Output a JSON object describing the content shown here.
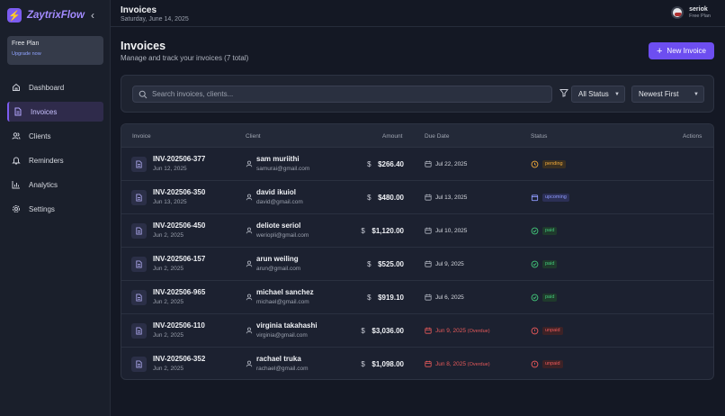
{
  "brand": {
    "name": "ZaytrixFlow",
    "logo_icon": "bolt-icon",
    "accent": "#7c5cf0"
  },
  "plan_card": {
    "title": "Free Plan",
    "link": "Upgrade now"
  },
  "nav": [
    {
      "label": "Dashboard",
      "icon": "home-icon"
    },
    {
      "label": "Invoices",
      "icon": "document-icon",
      "active": true
    },
    {
      "label": "Clients",
      "icon": "users-icon"
    },
    {
      "label": "Reminders",
      "icon": "bell-icon"
    },
    {
      "label": "Analytics",
      "icon": "chart-icon"
    },
    {
      "label": "Settings",
      "icon": "gear-icon"
    }
  ],
  "header": {
    "title": "Invoices",
    "date": "Saturday, June 14, 2025"
  },
  "user": {
    "name": "seriok",
    "plan": "Free Plan"
  },
  "page": {
    "title": "Invoices",
    "subtitle": "Manage and track your invoices (7 total)",
    "new_button": "New Invoice"
  },
  "filters": {
    "search_placeholder": "Search invoices, clients...",
    "status": "All Status",
    "sort": "Newest First"
  },
  "table": {
    "columns": [
      "Invoice",
      "Client",
      "Amount",
      "Due Date",
      "Status",
      "Actions"
    ],
    "rows": [
      {
        "id": "INV-202506-377",
        "date": "Jun 12, 2025",
        "client": "sam muriithi",
        "email": "samurai@gmail.com",
        "currency": "$",
        "amount": "$266.40",
        "due": "Jul 22, 2025",
        "overdue": "",
        "status": "pending"
      },
      {
        "id": "INV-202506-350",
        "date": "Jun 13, 2025",
        "client": "david ikuiol",
        "email": "david@gmail.com",
        "currency": "$",
        "amount": "$480.00",
        "due": "Jul 13, 2025",
        "overdue": "",
        "status": "upcoming"
      },
      {
        "id": "INV-202506-450",
        "date": "Jun 2, 2025",
        "client": "deliote seriol",
        "email": "weriopli@gmail.com",
        "currency": "$",
        "amount": "$1,120.00",
        "due": "Jul 10, 2025",
        "overdue": "",
        "status": "paid"
      },
      {
        "id": "INV-202506-157",
        "date": "Jun 2, 2025",
        "client": "arun weiling",
        "email": "arun@gmail.com",
        "currency": "$",
        "amount": "$525.00",
        "due": "Jul 9, 2025",
        "overdue": "",
        "status": "paid"
      },
      {
        "id": "INV-202506-965",
        "date": "Jun 2, 2025",
        "client": "michael sanchez",
        "email": "michael@gmail.com",
        "currency": "$",
        "amount": "$919.10",
        "due": "Jul 6, 2025",
        "overdue": "",
        "status": "paid"
      },
      {
        "id": "INV-202506-110",
        "date": "Jun 2, 2025",
        "client": "virginia takahashi",
        "email": "virginia@gmail.com",
        "currency": "$",
        "amount": "$3,036.00",
        "due": "Jun 9, 2025",
        "overdue": "(Overdue)",
        "status": "unpaid"
      },
      {
        "id": "INV-202506-352",
        "date": "Jun 2, 2025",
        "client": "rachael truka",
        "email": "rachael@gmail.com",
        "currency": "$",
        "amount": "$1,098.00",
        "due": "Jun 8, 2025",
        "overdue": "(Overdue)",
        "status": "unpaid"
      }
    ]
  }
}
